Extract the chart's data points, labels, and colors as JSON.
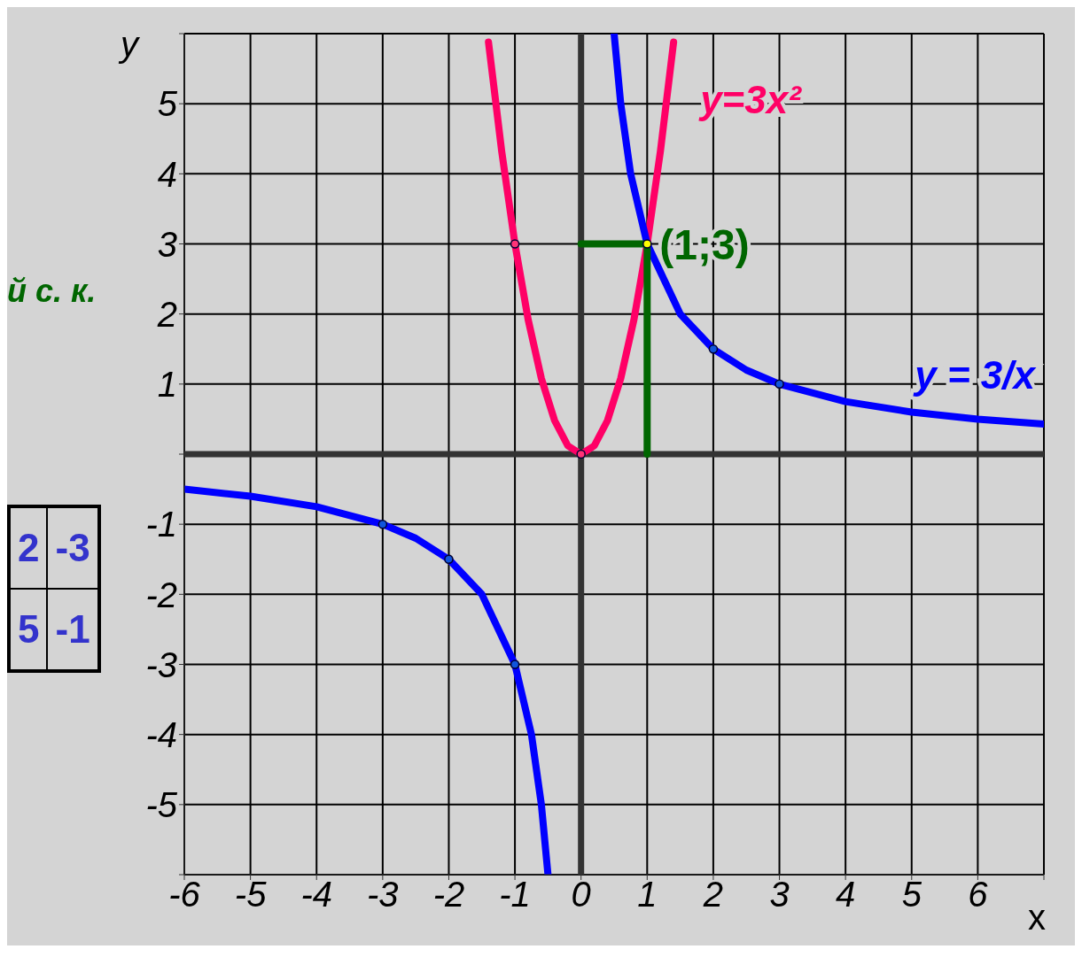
{
  "chart_data": {
    "type": "line",
    "xlabel": "x",
    "ylabel": "y",
    "xlim": [
      -6,
      7
    ],
    "ylim": [
      -6,
      6
    ],
    "xticks": [
      -6,
      -5,
      -4,
      -3,
      -2,
      -1,
      0,
      1,
      2,
      3,
      4,
      5,
      6,
      {
        "value": 7,
        "label": null
      }
    ],
    "yticks": [
      {
        "value": -6,
        "label": null
      },
      -5,
      -4,
      -3,
      -2,
      -1,
      {
        "value": 0,
        "label": null
      },
      1,
      2,
      3,
      4,
      5,
      {
        "value": 6,
        "label": null
      }
    ],
    "grid": true,
    "series": [
      {
        "name": "y=3x²",
        "color": "#ff0066",
        "marker": "none",
        "x": [
          -1.4,
          -1.2,
          -1,
          -0.8,
          -0.6,
          -0.4,
          -0.2,
          0,
          0.2,
          0.4,
          0.6,
          0.8,
          1,
          1.2,
          1.4
        ],
        "values": [
          5.88,
          4.32,
          3,
          1.92,
          1.08,
          0.48,
          0.12,
          0,
          0.12,
          0.48,
          1.08,
          1.92,
          3,
          4.32,
          5.88
        ]
      },
      {
        "name": "y = 3/x",
        "color": "#0000ff",
        "marker": "none",
        "x": [
          -6,
          -5,
          -4,
          -3,
          -2.5,
          -2,
          -1.5,
          -1,
          -0.75,
          -0.6,
          -0.5,
          0,
          0.5,
          0.6,
          0.75,
          1,
          1.5,
          2,
          2.5,
          3,
          4,
          5,
          6,
          7
        ],
        "values": [
          -0.5,
          -0.6,
          -0.75,
          -1,
          -1.2,
          -1.5,
          -2,
          -3,
          -4,
          -5,
          -6,
          null,
          6,
          5,
          4,
          3,
          2,
          1.5,
          1.2,
          1,
          0.75,
          0.6,
          0.5,
          0.43
        ]
      },
      {
        "color": "#006600",
        "marker": "none",
        "x": [
          0,
          1,
          1
        ],
        "values": [
          3,
          3,
          0
        ]
      },
      {
        "type": "scatter",
        "color": "#ff3377",
        "marker": "circle",
        "x": [
          -1,
          0
        ],
        "values": [
          3,
          0
        ]
      },
      {
        "type": "scatter",
        "color": "#1155dd",
        "marker": "circle",
        "x": [
          -3,
          -2,
          -1,
          2,
          3
        ],
        "values": [
          -1,
          -1.5,
          -3,
          1.5,
          1
        ]
      },
      {
        "type": "scatter",
        "color": "#ffff00",
        "marker": "circle",
        "x": [
          1
        ],
        "values": [
          3
        ]
      }
    ],
    "annotations": [
      "(1;3)",
      "й с. к.",
      "2",
      "-3",
      "5",
      "-1"
    ]
  }
}
